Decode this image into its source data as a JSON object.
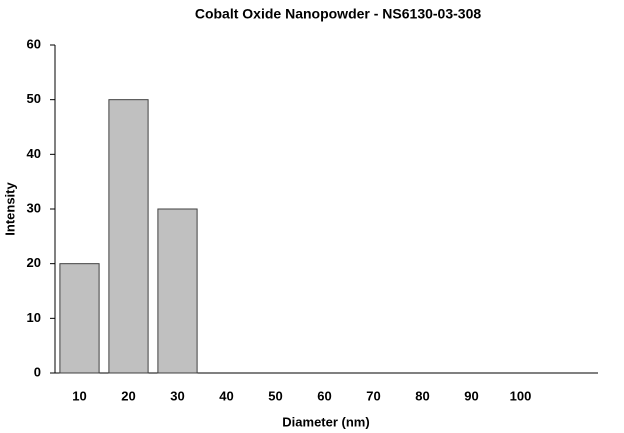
{
  "chart_data": {
    "type": "bar",
    "title": "Cobalt Oxide Nanopowder - NS6130-03-308",
    "x_label": "Diameter (nm)",
    "y_label": "Intensity",
    "categories": [
      "10",
      "20",
      "30",
      "40",
      "50",
      "60",
      "70",
      "80",
      "90",
      "100",
      null
    ],
    "values": [
      20,
      50,
      30,
      0,
      0,
      0,
      0,
      0,
      0,
      0,
      null
    ],
    "color": "#c0c0c0",
    "ylim": [
      0,
      60
    ],
    "yticks": [
      0,
      10,
      20,
      30,
      40,
      50,
      60
    ],
    "grid": false
  }
}
